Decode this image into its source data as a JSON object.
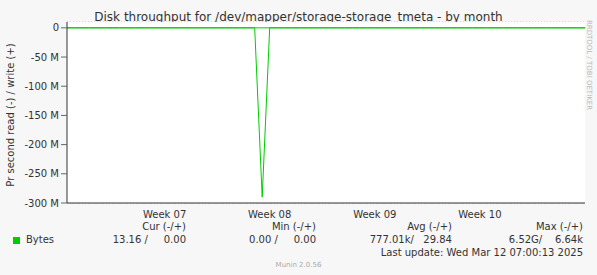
{
  "chart_data": {
    "type": "line",
    "title": "Disk throughput for /dev/mapper/storage-storage_tmeta - by month",
    "y_label": "Pr second read (-) / write (+)",
    "watermark": "RRDTOOL / TOBI OETIKER",
    "categories": [
      null,
      null,
      null,
      null,
      null,
      null,
      null,
      null,
      null,
      null,
      null,
      null,
      null,
      "Week 07",
      null,
      null,
      null,
      null,
      null,
      null,
      null,
      null,
      null,
      null,
      null,
      null,
      null,
      "Week 08",
      null,
      null,
      null,
      null,
      null,
      null,
      null,
      null,
      null,
      null,
      null,
      null,
      null,
      "Week 09",
      null,
      null,
      null,
      null,
      null,
      null,
      null,
      null,
      null,
      null,
      null,
      null,
      null,
      "Week 10",
      null,
      null,
      null,
      null,
      null,
      null,
      null,
      null,
      null,
      null,
      null,
      null,
      null,
      null
    ],
    "series": [
      {
        "name": "Bytes",
        "color": "#00cc00",
        "values": [
          0,
          0,
          0,
          0,
          0,
          0,
          0,
          0,
          0,
          0,
          0,
          0,
          0,
          0,
          0,
          0,
          0,
          0,
          0,
          0,
          0,
          0,
          0,
          0,
          0,
          0,
          -290000000,
          0,
          0,
          0,
          0,
          0,
          0,
          0,
          0,
          0,
          0,
          0,
          0,
          0,
          0,
          0,
          0,
          0,
          0,
          0,
          0,
          0,
          0,
          0,
          0,
          0,
          0,
          0,
          0,
          0,
          0,
          0,
          0,
          0,
          0,
          0,
          0,
          0,
          0,
          0,
          0,
          0,
          0,
          0
        ],
        "write_values": [
          0,
          0,
          0,
          0,
          0,
          0,
          0,
          0,
          0,
          0,
          0,
          0,
          0,
          0,
          0,
          0,
          0,
          0,
          0,
          0,
          0,
          0,
          0,
          0,
          0,
          0,
          0,
          0,
          0,
          0,
          0,
          0,
          0,
          0,
          0,
          0,
          0,
          0,
          0,
          0,
          0,
          0,
          0,
          0,
          0,
          0,
          0,
          0,
          0,
          0,
          0,
          0,
          0,
          0,
          0,
          0,
          0,
          0,
          0,
          0,
          0,
          0,
          0,
          0,
          0,
          0,
          0,
          0,
          0,
          0
        ]
      }
    ],
    "ylim": [
      -300000000,
      10000000
    ],
    "yticks": [
      0,
      {
        "value": -50000000,
        "label": "-50 M"
      },
      {
        "value": -100000000,
        "label": "-100 M"
      },
      {
        "value": -150000000,
        "label": "-150 M"
      },
      {
        "value": -200000000,
        "label": "-200 M"
      },
      {
        "value": -250000000,
        "label": "-250 M"
      },
      {
        "value": -300000000,
        "label": "-300 M"
      }
    ],
    "grid": true,
    "stats": {
      "headers": [
        "Cur (-/+)",
        "Min (-/+)",
        "Avg (-/+)",
        "Max (-/+)"
      ],
      "cells": [
        "13.16 /     0.00",
        "0.00 /     0.00",
        "777.01k/   29.84",
        "6.52G/    6.64k"
      ]
    },
    "last_update": "Last update: Wed Mar 12 07:00:13 2025",
    "footer": "Munin 2.0.56"
  }
}
